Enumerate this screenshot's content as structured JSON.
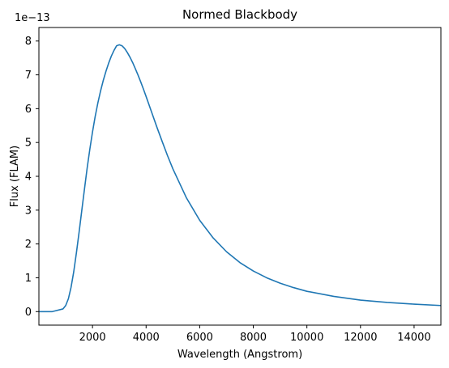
{
  "chart_data": {
    "type": "line",
    "title": "Normed Blackbody",
    "xlabel": "Wavelength (Angstrom)",
    "ylabel": "Flux (FLAM)",
    "y_offset_label": "1e−13",
    "xlim": [
      0,
      15000
    ],
    "ylim": [
      -0.4,
      8.4
    ],
    "x_ticks": [
      2000,
      4000,
      6000,
      8000,
      10000,
      12000,
      14000
    ],
    "x_tick_labels": [
      "2000",
      "4000",
      "6000",
      "8000",
      "10000",
      "12000",
      "14000"
    ],
    "y_ticks": [
      0,
      1,
      2,
      3,
      4,
      5,
      6,
      7,
      8
    ],
    "y_tick_labels": [
      "0",
      "1",
      "2",
      "3",
      "4",
      "5",
      "6",
      "7",
      "8"
    ],
    "grid": false,
    "series": [
      {
        "color": "#1f77b4",
        "x": [
          0,
          500,
          900,
          1000,
          1100,
          1200,
          1300,
          1400,
          1500,
          1600,
          1700,
          1800,
          1900,
          2000,
          2100,
          2200,
          2300,
          2400,
          2500,
          2600,
          2700,
          2800,
          2900,
          3000,
          3100,
          3200,
          3300,
          3400,
          3500,
          3600,
          3700,
          3800,
          3900,
          4000,
          4200,
          4400,
          4600,
          4800,
          5000,
          5500,
          6000,
          6500,
          7000,
          7500,
          8000,
          8500,
          9000,
          9500,
          10000,
          11000,
          12000,
          13000,
          14000,
          15000
        ],
        "y": [
          0.0,
          0.0,
          0.08,
          0.18,
          0.38,
          0.72,
          1.18,
          1.74,
          2.35,
          2.99,
          3.62,
          4.24,
          4.8,
          5.31,
          5.77,
          6.17,
          6.52,
          6.83,
          7.1,
          7.34,
          7.55,
          7.72,
          7.86,
          7.89,
          7.86,
          7.78,
          7.66,
          7.52,
          7.36,
          7.18,
          6.99,
          6.79,
          6.58,
          6.36,
          5.91,
          5.46,
          5.03,
          4.61,
          4.22,
          3.37,
          2.7,
          2.18,
          1.77,
          1.45,
          1.2,
          1.0,
          0.84,
          0.71,
          0.6,
          0.45,
          0.34,
          0.27,
          0.22,
          0.18
        ]
      }
    ]
  }
}
